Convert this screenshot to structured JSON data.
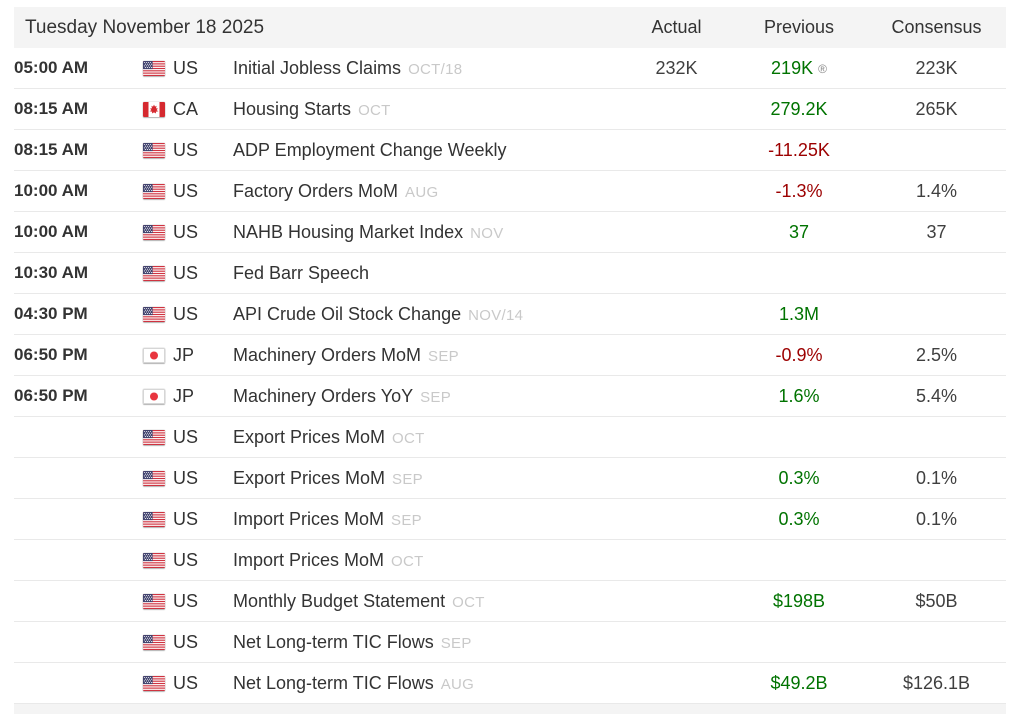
{
  "header": {
    "date_label": "Tuesday November 18 2025",
    "columns": [
      "Actual",
      "Previous",
      "Consensus"
    ]
  },
  "strings": {
    "revised_mark": "®"
  },
  "colors": {
    "positive": "#007300",
    "negative": "#9c0000",
    "neutral_value": "#3f3f3f",
    "reference_text": "#c9c9c9",
    "header_bg": "#f4f4f4"
  },
  "rows": [
    {
      "time": "05:00 AM",
      "flag": "us",
      "country": "US",
      "event": "Initial Jobless Claims",
      "reference": "OCT/18",
      "actual": {
        "text": "232K",
        "tone": "neutral"
      },
      "previous": {
        "text": "219K",
        "tone": "green",
        "revised": true
      },
      "consensus": {
        "text": "223K"
      }
    },
    {
      "time": "08:15 AM",
      "flag": "ca",
      "country": "CA",
      "event": "Housing Starts",
      "reference": "OCT",
      "actual": null,
      "previous": {
        "text": "279.2K",
        "tone": "green",
        "revised": false
      },
      "consensus": {
        "text": "265K"
      }
    },
    {
      "time": "08:15 AM",
      "flag": "us",
      "country": "US",
      "event": "ADP Employment Change Weekly",
      "reference": "",
      "actual": null,
      "previous": {
        "text": "-11.25K",
        "tone": "red",
        "revised": false
      },
      "consensus": null
    },
    {
      "time": "10:00 AM",
      "flag": "us",
      "country": "US",
      "event": "Factory Orders MoM",
      "reference": "AUG",
      "actual": null,
      "previous": {
        "text": "-1.3%",
        "tone": "red",
        "revised": false
      },
      "consensus": {
        "text": "1.4%"
      }
    },
    {
      "time": "10:00 AM",
      "flag": "us",
      "country": "US",
      "event": "NAHB Housing Market Index",
      "reference": "NOV",
      "actual": null,
      "previous": {
        "text": "37",
        "tone": "green",
        "revised": false
      },
      "consensus": {
        "text": "37"
      }
    },
    {
      "time": "10:30 AM",
      "flag": "us",
      "country": "US",
      "event": "Fed Barr Speech",
      "reference": "",
      "actual": null,
      "previous": null,
      "consensus": null
    },
    {
      "time": "04:30 PM",
      "flag": "us",
      "country": "US",
      "event": "API Crude Oil Stock Change",
      "reference": "NOV/14",
      "actual": null,
      "previous": {
        "text": "1.3M",
        "tone": "green",
        "revised": false
      },
      "consensus": null
    },
    {
      "time": "06:50 PM",
      "flag": "jp",
      "country": "JP",
      "event": "Machinery Orders MoM",
      "reference": "SEP",
      "actual": null,
      "previous": {
        "text": "-0.9%",
        "tone": "red",
        "revised": false
      },
      "consensus": {
        "text": "2.5%"
      }
    },
    {
      "time": "06:50 PM",
      "flag": "jp",
      "country": "JP",
      "event": "Machinery Orders YoY",
      "reference": "SEP",
      "actual": null,
      "previous": {
        "text": "1.6%",
        "tone": "green",
        "revised": false
      },
      "consensus": {
        "text": "5.4%"
      }
    },
    {
      "time": "",
      "flag": "us",
      "country": "US",
      "event": "Export Prices MoM",
      "reference": "OCT",
      "actual": null,
      "previous": null,
      "consensus": null
    },
    {
      "time": "",
      "flag": "us",
      "country": "US",
      "event": "Export Prices MoM",
      "reference": "SEP",
      "actual": null,
      "previous": {
        "text": "0.3%",
        "tone": "green",
        "revised": false
      },
      "consensus": {
        "text": "0.1%"
      }
    },
    {
      "time": "",
      "flag": "us",
      "country": "US",
      "event": "Import Prices MoM",
      "reference": "SEP",
      "actual": null,
      "previous": {
        "text": "0.3%",
        "tone": "green",
        "revised": false
      },
      "consensus": {
        "text": "0.1%"
      }
    },
    {
      "time": "",
      "flag": "us",
      "country": "US",
      "event": "Import Prices MoM",
      "reference": "OCT",
      "actual": null,
      "previous": null,
      "consensus": null
    },
    {
      "time": "",
      "flag": "us",
      "country": "US",
      "event": "Monthly Budget Statement",
      "reference": "OCT",
      "actual": null,
      "previous": {
        "text": "$198B",
        "tone": "green",
        "revised": false
      },
      "consensus": {
        "text": "$50B"
      }
    },
    {
      "time": "",
      "flag": "us",
      "country": "US",
      "event": "Net Long-term TIC Flows",
      "reference": "SEP",
      "actual": null,
      "previous": null,
      "consensus": null
    },
    {
      "time": "",
      "flag": "us",
      "country": "US",
      "event": "Net Long-term TIC Flows",
      "reference": "AUG",
      "actual": null,
      "previous": {
        "text": "$49.2B",
        "tone": "green",
        "revised": false
      },
      "consensus": {
        "text": "$126.1B"
      }
    }
  ]
}
